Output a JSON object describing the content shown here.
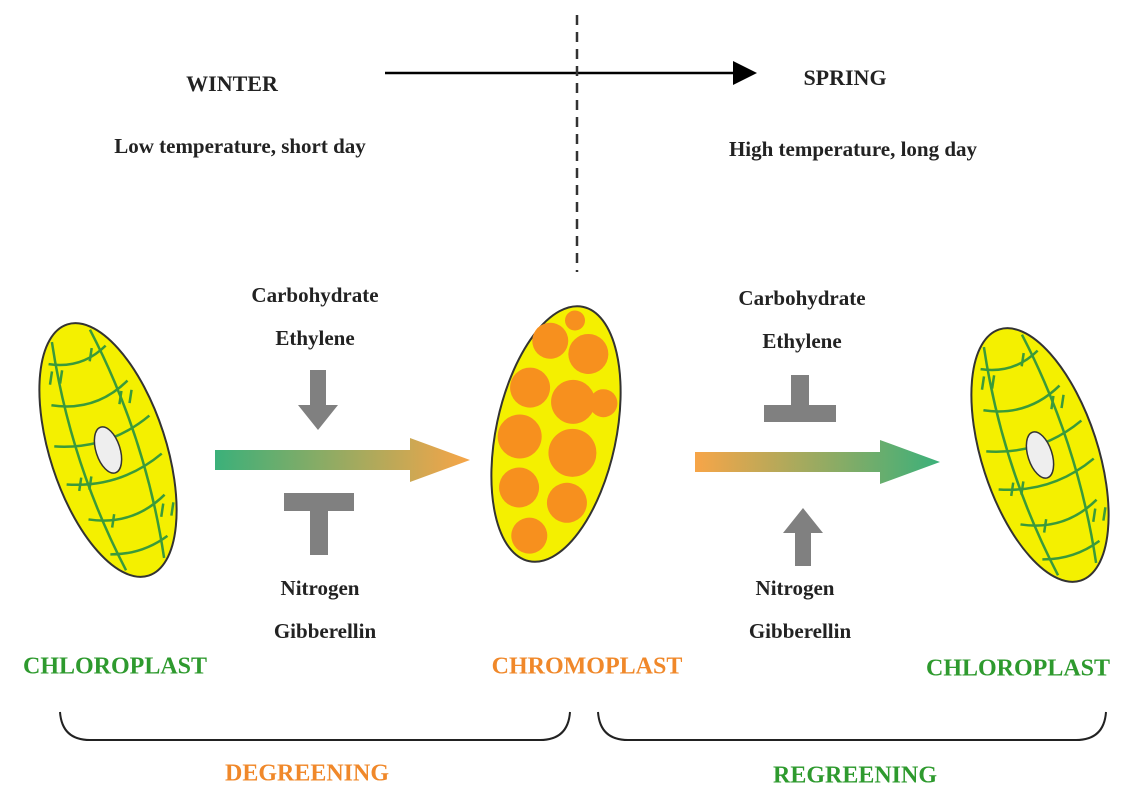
{
  "header": {
    "left": {
      "season": "WINTER",
      "conditions": "Low temperature, short day"
    },
    "right": {
      "season": "SPRING",
      "conditions": "High temperature, long day"
    }
  },
  "transitions": [
    {
      "promoters": [
        "Carbohydrate",
        "Ethylene"
      ],
      "inhibitors": [
        "Nitrogen",
        "Gibberellin"
      ]
    },
    {
      "inhibitors": [
        "Carbohydrate",
        "Ethylene"
      ],
      "promoters": [
        "Nitrogen",
        "Gibberellin"
      ]
    }
  ],
  "nodes": [
    {
      "label": "CHLOROPLAST"
    },
    {
      "label": "CHROMOPLAST"
    },
    {
      "label": "CHLOROPLAST"
    }
  ],
  "phases": [
    {
      "label": "DEGREENING"
    },
    {
      "label": "REGREENING"
    }
  ]
}
